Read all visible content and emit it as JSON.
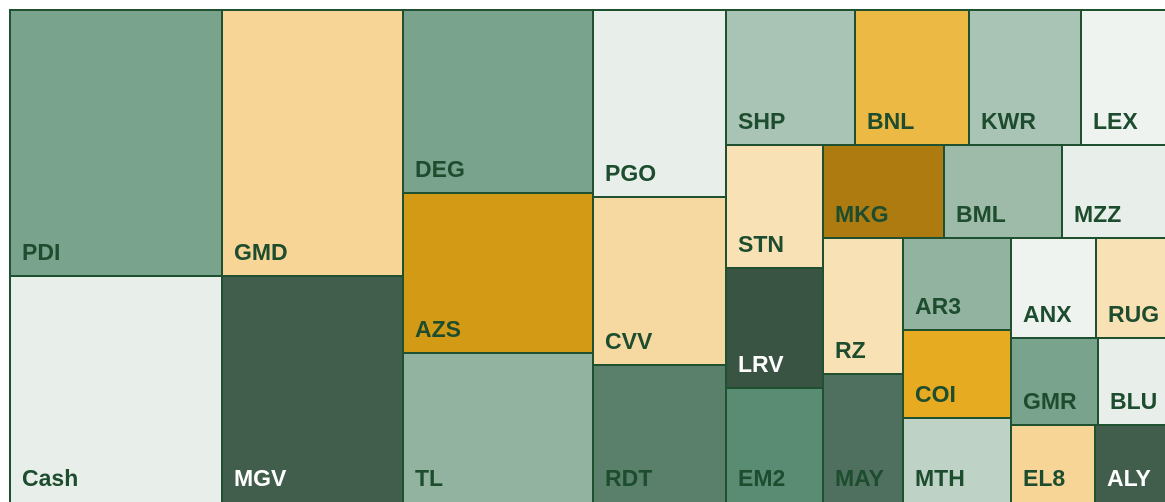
{
  "tiles": [
    "PDI",
    "Cash",
    "GMD",
    "MGV",
    "DEG",
    "AZS",
    "TL",
    "PGO",
    "CVV",
    "RDT",
    "SHP",
    "BNL",
    "KWR",
    "LEX",
    "STN",
    "LRV",
    "EM2",
    "MKG",
    "BML",
    "MZZ",
    "RZ",
    "MAY",
    "AR3",
    "COI",
    "MTH",
    "ANX",
    "RUG",
    "GMR",
    "BLU",
    "EL8",
    "ALY"
  ]
}
